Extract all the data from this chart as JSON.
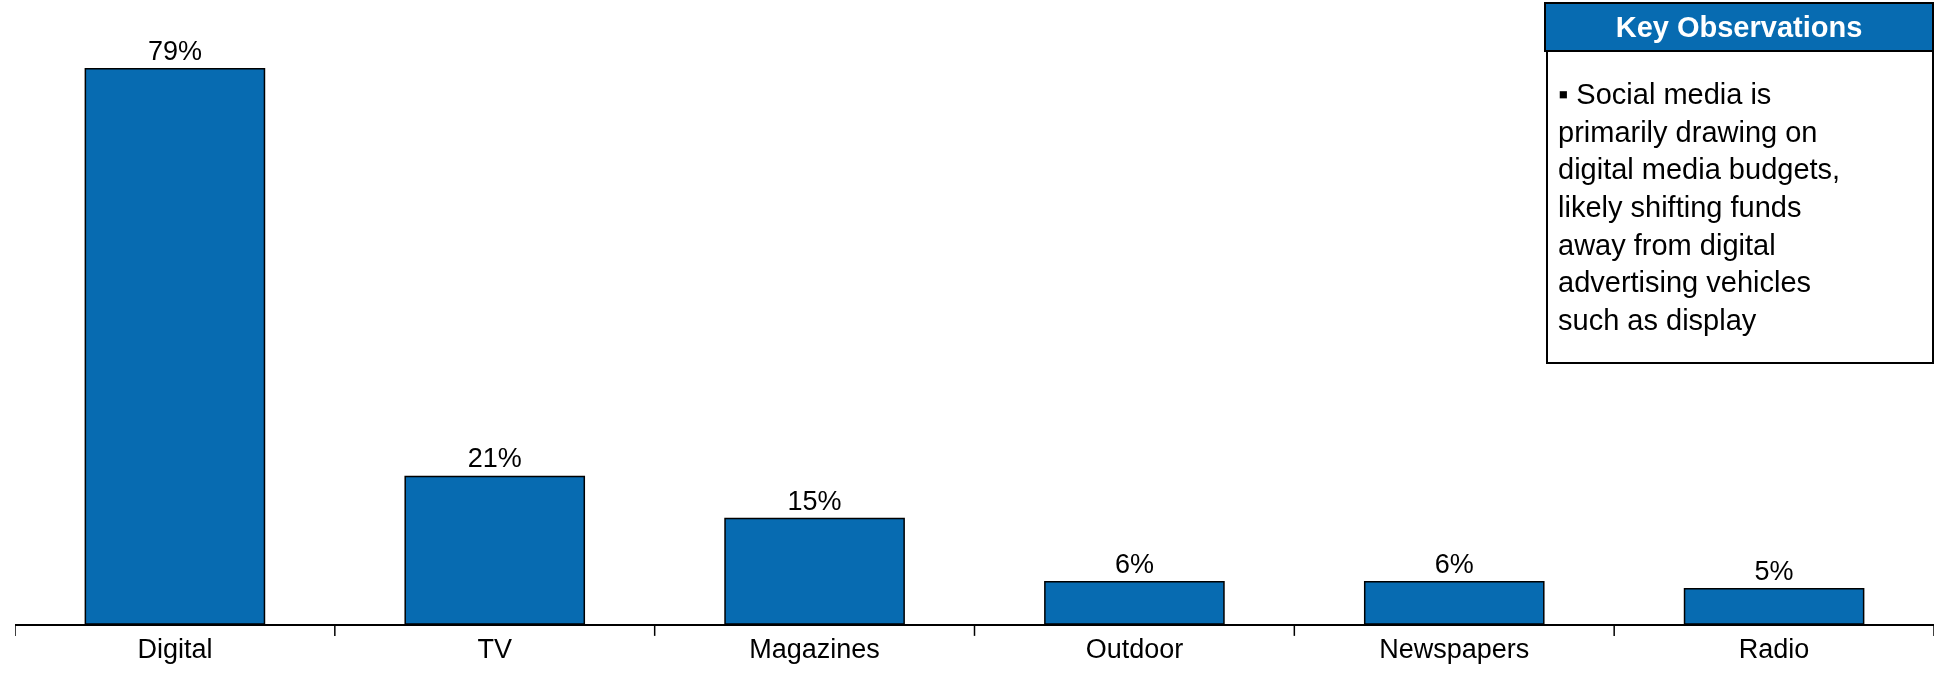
{
  "chart_data": {
    "type": "bar",
    "categories": [
      "Digital",
      "TV",
      "Magazines",
      "Outdoor",
      "Newspapers",
      "Radio"
    ],
    "values": [
      79,
      21,
      15,
      6,
      6,
      5
    ],
    "value_labels": [
      "79%",
      "21%",
      "15%",
      "6%",
      "6%",
      "5%"
    ],
    "color": "#076bb1",
    "tick_labels": "x",
    "annotations": [
      "Key Observations",
      "▪ Social media is primarily drawing on digital media budgets, likely shifting funds away from digital advertising vehicles such as display"
    ]
  }
}
